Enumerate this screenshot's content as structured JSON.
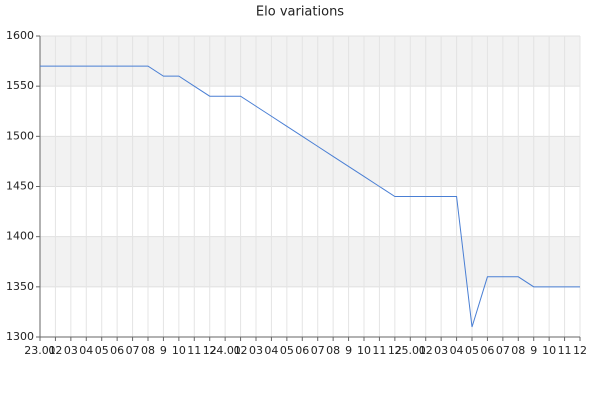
{
  "chart_data": {
    "type": "line",
    "title": "Elo variations",
    "categories": [
      "23.01",
      "02",
      "03",
      "04",
      "05",
      "06",
      "07",
      "08",
      "9",
      "10",
      "11",
      "12",
      "24.01",
      "02",
      "03",
      "04",
      "05",
      "06",
      "07",
      "08",
      "9",
      "10",
      "11",
      "12",
      "25.01",
      "02",
      "03",
      "04",
      "05",
      "06",
      "07",
      "08",
      "9",
      "10",
      "11",
      "12"
    ],
    "series": [
      {
        "color": "#4a7fd4",
        "values": [
          1570,
          1570,
          1570,
          1570,
          1570,
          1570,
          1570,
          1570,
          1560,
          1560,
          1550,
          1540,
          1540,
          1540,
          1530,
          1520,
          1510,
          1500,
          1490,
          1480,
          1470,
          1460,
          1450,
          1440,
          1440,
          1440,
          1440,
          1440,
          1310,
          1360,
          1360,
          1360,
          1350,
          1350,
          1350,
          1350
        ]
      }
    ],
    "ylim": [
      1300,
      1600
    ],
    "yticks": [
      1300,
      1350,
      1400,
      1450,
      1500,
      1550,
      1600
    ],
    "grid": true,
    "bands": true
  }
}
